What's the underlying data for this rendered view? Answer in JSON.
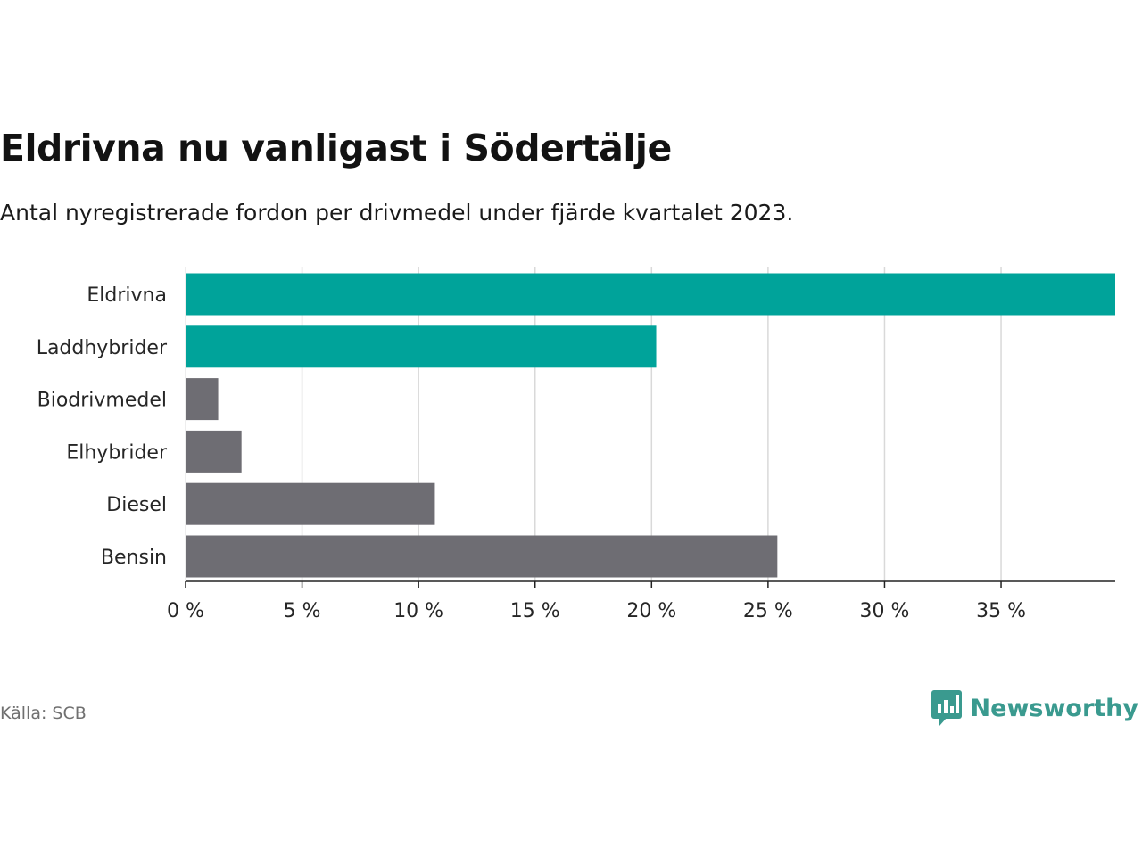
{
  "title": "Eldrivna nu vanligast i Södertälje",
  "subtitle": "Antal nyregistrerade fordon per drivmedel under fjärde kvartalet 2023.",
  "source": "Källa: SCB",
  "brand": "Newsworthy",
  "colors": {
    "highlight": "#00a39a",
    "muted": "#6e6d73",
    "grid": "#d9d9d9",
    "axis": "#222222",
    "brand": "#3a9a8f"
  },
  "icons": {
    "logo": "bar-chart-speech-bubble-icon"
  },
  "chart_data": {
    "type": "bar",
    "orientation": "horizontal",
    "categories": [
      "Eldrivna",
      "Laddhybrider",
      "Biodrivmedel",
      "Elhybrider",
      "Diesel",
      "Bensin"
    ],
    "values": [
      39.9,
      20.2,
      1.4,
      2.4,
      10.7,
      25.4
    ],
    "highlighted": [
      true,
      true,
      false,
      false,
      false,
      false
    ],
    "xlim": [
      0,
      39.9
    ],
    "xticks": [
      0,
      5,
      10,
      15,
      20,
      25,
      30,
      35
    ],
    "xtick_labels": [
      "0 %",
      "5 %",
      "10 %",
      "15 %",
      "20 %",
      "25 %",
      "30 %",
      "35 %"
    ],
    "unit": "%",
    "grid": true
  }
}
